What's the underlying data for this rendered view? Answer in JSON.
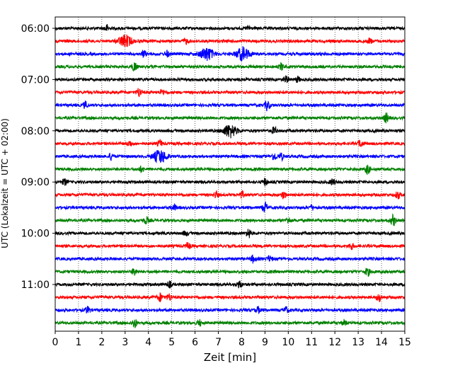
{
  "chart_data": {
    "type": "line",
    "title": "",
    "xlabel": "Zeit  [min]",
    "ylabel": "UTC (Lokalzeit = UTC + 02:00)",
    "xlim": [
      0,
      15
    ],
    "x_ticks": [
      0,
      1,
      2,
      3,
      4,
      5,
      6,
      7,
      8,
      9,
      10,
      11,
      12,
      13,
      14,
      15
    ],
    "x_tick_labels": [
      "0",
      "1",
      "2",
      "3",
      "4",
      "5",
      "6",
      "7",
      "8",
      "9",
      "10",
      "11",
      "12",
      "13",
      "14",
      "15"
    ],
    "y_tick_labels": [
      "06:00",
      "07:00",
      "08:00",
      "09:00",
      "10:00",
      "11:00"
    ],
    "y_tick_trace_index": [
      0,
      4,
      8,
      12,
      16,
      20
    ],
    "grid": "vertical dotted",
    "legend": "none",
    "trace_colors": [
      "#000000",
      "#ff0000",
      "#0000ff",
      "#008000"
    ],
    "traces": [
      {
        "start_time": "06:00",
        "color": "#000000",
        "events": [
          {
            "t": 2.2,
            "a": 0.5
          },
          {
            "t": 8.3,
            "a": 0.35
          }
        ]
      },
      {
        "start_time": "06:15",
        "color": "#ff0000",
        "events": [
          {
            "t": 3.0,
            "a": 0.9
          },
          {
            "t": 5.6,
            "a": 0.4
          },
          {
            "t": 13.5,
            "a": 0.4
          }
        ]
      },
      {
        "start_time": "06:30",
        "color": "#0000ff",
        "events": [
          {
            "t": 3.8,
            "a": 0.5
          },
          {
            "t": 4.8,
            "a": 0.45
          },
          {
            "t": 6.5,
            "a": 1.0
          },
          {
            "t": 8.05,
            "a": 1.0
          }
        ]
      },
      {
        "start_time": "06:45",
        "color": "#008000",
        "events": [
          {
            "t": 3.4,
            "a": 0.7
          },
          {
            "t": 9.7,
            "a": 0.5
          }
        ]
      },
      {
        "start_time": "07:00",
        "color": "#000000",
        "events": [
          {
            "t": 9.9,
            "a": 0.5
          },
          {
            "t": 10.4,
            "a": 0.4
          }
        ]
      },
      {
        "start_time": "07:15",
        "color": "#ff0000",
        "events": [
          {
            "t": 3.6,
            "a": 0.7
          },
          {
            "t": 4.6,
            "a": 0.4
          }
        ]
      },
      {
        "start_time": "07:30",
        "color": "#0000ff",
        "events": [
          {
            "t": 1.3,
            "a": 0.5
          },
          {
            "t": 9.1,
            "a": 0.8
          }
        ]
      },
      {
        "start_time": "07:45",
        "color": "#008000",
        "events": [
          {
            "t": 14.2,
            "a": 0.7
          }
        ]
      },
      {
        "start_time": "08:00",
        "color": "#000000",
        "events": [
          {
            "t": 7.5,
            "a": 1.0
          },
          {
            "t": 9.4,
            "a": 0.55
          }
        ]
      },
      {
        "start_time": "08:15",
        "color": "#ff0000",
        "events": [
          {
            "t": 3.2,
            "a": 0.4
          },
          {
            "t": 4.5,
            "a": 0.45
          },
          {
            "t": 13.1,
            "a": 0.5
          }
        ]
      },
      {
        "start_time": "08:30",
        "color": "#0000ff",
        "events": [
          {
            "t": 2.4,
            "a": 0.5
          },
          {
            "t": 4.5,
            "a": 1.0
          },
          {
            "t": 9.4,
            "a": 0.6
          },
          {
            "t": 9.7,
            "a": 0.5
          }
        ]
      },
      {
        "start_time": "08:45",
        "color": "#008000",
        "events": [
          {
            "t": 3.7,
            "a": 0.4
          },
          {
            "t": 13.4,
            "a": 0.7
          }
        ]
      },
      {
        "start_time": "09:00",
        "color": "#000000",
        "events": [
          {
            "t": 0.4,
            "a": 0.45
          },
          {
            "t": 9.0,
            "a": 0.5
          },
          {
            "t": 11.9,
            "a": 0.45
          }
        ]
      },
      {
        "start_time": "09:15",
        "color": "#ff0000",
        "events": [
          {
            "t": 6.9,
            "a": 0.45
          },
          {
            "t": 8.0,
            "a": 0.5
          },
          {
            "t": 9.8,
            "a": 0.55
          },
          {
            "t": 14.7,
            "a": 0.55
          }
        ]
      },
      {
        "start_time": "09:30",
        "color": "#0000ff",
        "events": [
          {
            "t": 5.1,
            "a": 0.4
          },
          {
            "t": 9.0,
            "a": 0.8
          },
          {
            "t": 11.0,
            "a": 0.35
          }
        ]
      },
      {
        "start_time": "09:45",
        "color": "#008000",
        "events": [
          {
            "t": 3.9,
            "a": 0.5
          },
          {
            "t": 10.0,
            "a": 0.45
          },
          {
            "t": 14.5,
            "a": 0.8
          }
        ]
      },
      {
        "start_time": "10:00",
        "color": "#000000",
        "events": [
          {
            "t": 5.6,
            "a": 0.35
          },
          {
            "t": 8.3,
            "a": 0.7
          }
        ]
      },
      {
        "start_time": "10:15",
        "color": "#ff0000",
        "events": [
          {
            "t": 5.7,
            "a": 0.5
          },
          {
            "t": 12.7,
            "a": 0.5
          }
        ]
      },
      {
        "start_time": "10:30",
        "color": "#0000ff",
        "events": [
          {
            "t": 8.5,
            "a": 0.55
          },
          {
            "t": 9.2,
            "a": 0.4
          }
        ]
      },
      {
        "start_time": "10:45",
        "color": "#008000",
        "events": [
          {
            "t": 3.4,
            "a": 0.55
          },
          {
            "t": 13.4,
            "a": 0.6
          }
        ]
      },
      {
        "start_time": "11:00",
        "color": "#000000",
        "events": [
          {
            "t": 4.9,
            "a": 0.45
          },
          {
            "t": 7.9,
            "a": 0.55
          }
        ]
      },
      {
        "start_time": "11:15",
        "color": "#ff0000",
        "events": [
          {
            "t": 4.5,
            "a": 0.6
          },
          {
            "t": 4.9,
            "a": 0.5
          },
          {
            "t": 13.9,
            "a": 0.6
          }
        ]
      },
      {
        "start_time": "11:30",
        "color": "#0000ff",
        "events": [
          {
            "t": 1.4,
            "a": 0.5
          },
          {
            "t": 8.7,
            "a": 0.45
          },
          {
            "t": 9.9,
            "a": 0.45
          }
        ]
      },
      {
        "start_time": "11:45",
        "color": "#008000",
        "events": [
          {
            "t": 3.4,
            "a": 0.7
          },
          {
            "t": 6.2,
            "a": 0.45
          },
          {
            "t": 12.4,
            "a": 0.4
          }
        ]
      }
    ]
  }
}
